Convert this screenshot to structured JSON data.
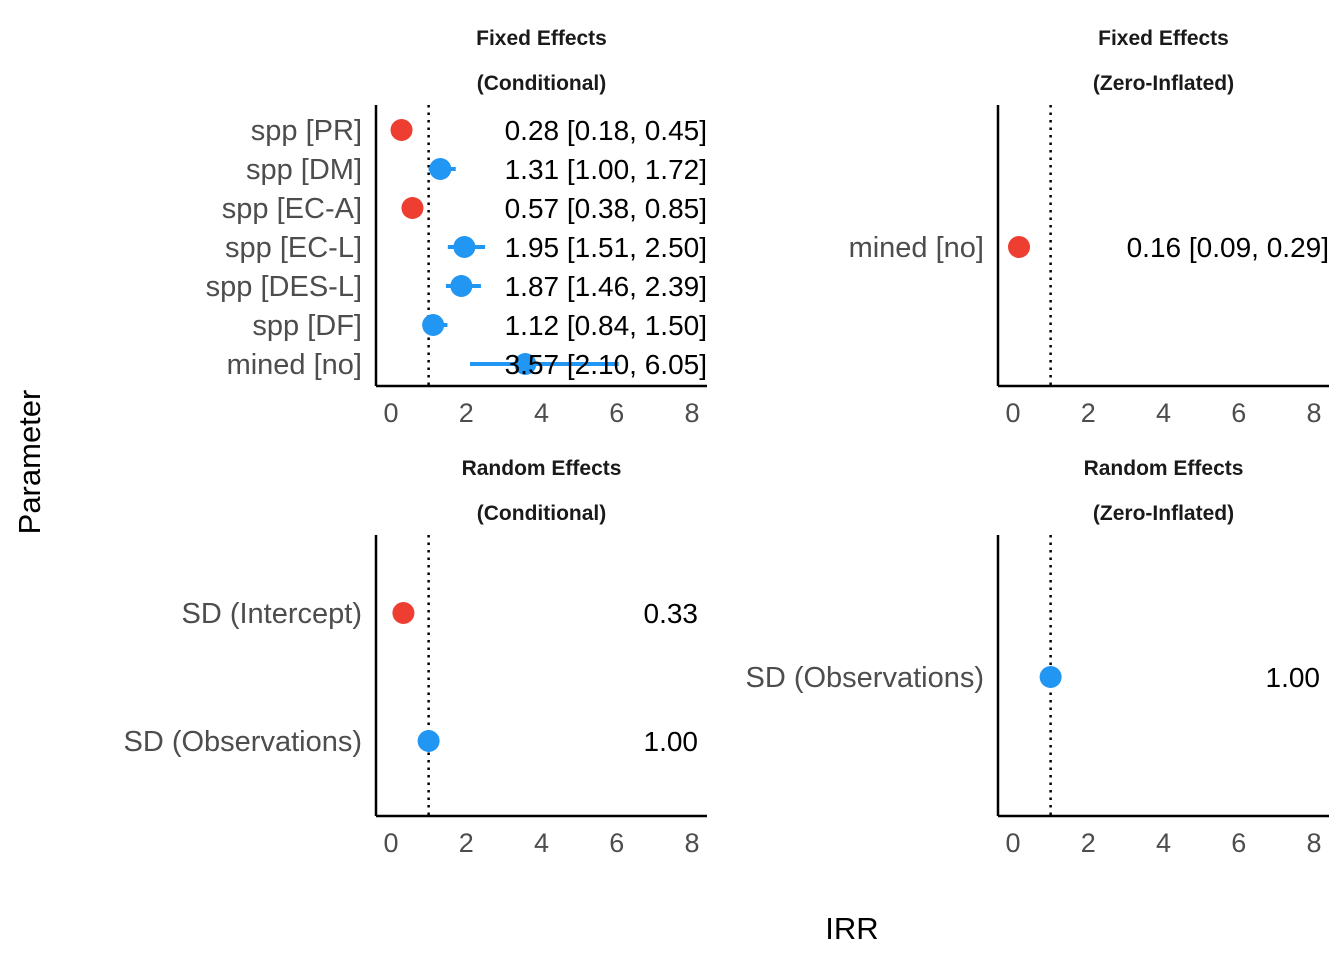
{
  "chart_data": [
    {
      "type": "scatter",
      "title": "Fixed Effects",
      "subtitle": "(Conditional)",
      "xlim": [
        0,
        8
      ],
      "x_ticks": [
        "0",
        "2",
        "4",
        "6",
        "8"
      ],
      "reference_line": 1,
      "points": [
        {
          "label": "spp [PR]",
          "value": 0.28,
          "low": 0.18,
          "high": 0.45,
          "text": "0.28 [0.18, 0.45]",
          "color": "#ee3e32"
        },
        {
          "label": "spp [DM]",
          "value": 1.31,
          "low": 1.0,
          "high": 1.72,
          "text": "1.31 [1.00, 1.72]",
          "color": "#2196f3"
        },
        {
          "label": "spp [EC-A]",
          "value": 0.57,
          "low": 0.38,
          "high": 0.85,
          "text": "0.57 [0.38, 0.85]",
          "color": "#ee3e32"
        },
        {
          "label": "spp [EC-L]",
          "value": 1.95,
          "low": 1.51,
          "high": 2.5,
          "text": "1.95 [1.51, 2.50]",
          "color": "#2196f3"
        },
        {
          "label": "spp [DES-L]",
          "value": 1.87,
          "low": 1.46,
          "high": 2.39,
          "text": "1.87 [1.46, 2.39]",
          "color": "#2196f3"
        },
        {
          "label": "spp [DF]",
          "value": 1.12,
          "low": 0.84,
          "high": 1.5,
          "text": "1.12 [0.84, 1.50]",
          "color": "#2196f3"
        },
        {
          "label": "mined [no]",
          "value": 3.57,
          "low": 2.1,
          "high": 6.05,
          "text": "3.57 [2.10, 6.05]",
          "color": "#2196f3"
        }
      ]
    },
    {
      "type": "scatter",
      "title": "Fixed Effects",
      "subtitle": "(Zero-Inflated)",
      "xlim": [
        0,
        8
      ],
      "x_ticks": [
        "0",
        "2",
        "4",
        "6",
        "8"
      ],
      "reference_line": 1,
      "points": [
        {
          "label": "mined [no]",
          "value": 0.16,
          "low": 0.09,
          "high": 0.29,
          "text": "0.16 [0.09, 0.29]",
          "color": "#ee3e32"
        }
      ]
    },
    {
      "type": "scatter",
      "title": "Random Effects",
      "subtitle": "(Conditional)",
      "xlim": [
        0,
        8
      ],
      "x_ticks": [
        "0",
        "2",
        "4",
        "6",
        "8"
      ],
      "reference_line": 1,
      "points": [
        {
          "label": "SD (Intercept)",
          "value": 0.33,
          "text": "0.33",
          "color": "#ee3e32"
        },
        {
          "label": "SD (Observations)",
          "value": 1.0,
          "text": "1.00",
          "color": "#2196f3"
        }
      ]
    },
    {
      "type": "scatter",
      "title": "Random Effects",
      "subtitle": "(Zero-Inflated)",
      "xlim": [
        0,
        8
      ],
      "x_ticks": [
        "0",
        "2",
        "4",
        "6",
        "8"
      ],
      "reference_line": 1,
      "points": [
        {
          "label": "SD (Observations)",
          "value": 1.0,
          "text": "1.00",
          "color": "#2196f3"
        }
      ]
    }
  ],
  "xlabel": "IRR",
  "ylabel": "Parameter"
}
